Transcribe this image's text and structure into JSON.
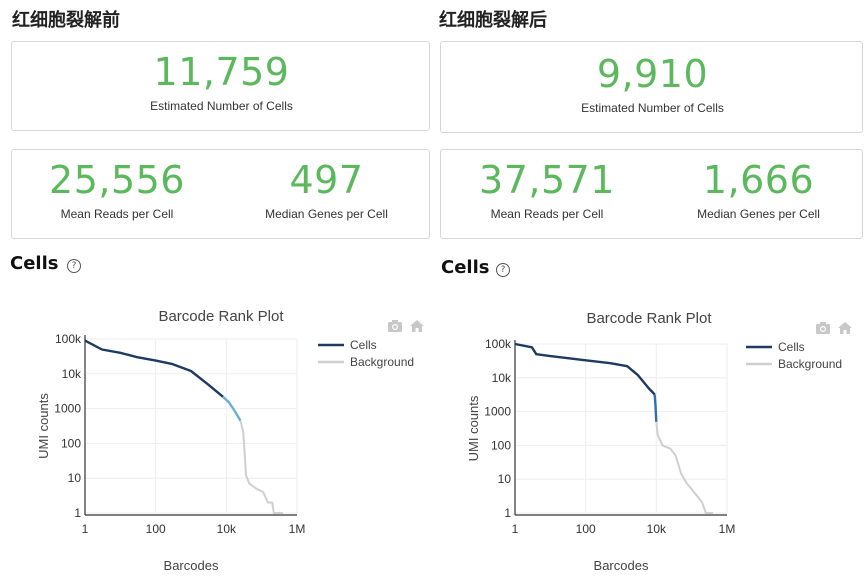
{
  "panels": [
    {
      "title": "红细胞裂解前",
      "estimated_cells": {
        "value": "11,759",
        "label": "Estimated Number of Cells"
      },
      "mean_reads": {
        "value": "25,556",
        "label": "Mean Reads per Cell"
      },
      "median_genes": {
        "value": "497",
        "label": "Median Genes per Cell"
      },
      "section_heading": "Cells",
      "help_glyph": "?",
      "toolbar": {
        "camera_icon": "camera-icon",
        "home_icon": "home-icon"
      }
    },
    {
      "title": "红细胞裂解后",
      "estimated_cells": {
        "value": "9,910",
        "label": "Estimated Number of Cells"
      },
      "mean_reads": {
        "value": "37,571",
        "label": "Mean Reads per Cell"
      },
      "median_genes": {
        "value": "1,666",
        "label": "Median Genes per Cell"
      },
      "section_heading": "Cells",
      "help_glyph": "?",
      "toolbar": {
        "camera_icon": "camera-icon",
        "home_icon": "home-icon"
      }
    }
  ],
  "colors": {
    "metric_green": "#5cb85c",
    "cells_line": "#1f3a60",
    "transition_line": "#6aaed6",
    "background_line": "#cfcfcf"
  },
  "chart_data": [
    {
      "type": "line",
      "title": "Barcode Rank Plot",
      "xlabel": "Barcodes",
      "ylabel": "UMI counts",
      "xscale": "log",
      "yscale": "log",
      "xlim": [
        1,
        1000000
      ],
      "ylim": [
        1,
        100000
      ],
      "xticks": [
        {
          "v": 1,
          "label": "1"
        },
        {
          "v": 100,
          "label": "100"
        },
        {
          "v": 10000,
          "label": "10k"
        },
        {
          "v": 1000000,
          "label": "1M"
        }
      ],
      "yticks": [
        {
          "v": 1,
          "label": "1"
        },
        {
          "v": 10,
          "label": "10"
        },
        {
          "v": 100,
          "label": "100"
        },
        {
          "v": 1000,
          "label": "1000"
        },
        {
          "v": 10000,
          "label": "10k"
        },
        {
          "v": 100000,
          "label": "100k"
        }
      ],
      "legend": [
        {
          "name": "Cells",
          "color": "#1f3a60"
        },
        {
          "name": "Background",
          "color": "#cfcfcf"
        }
      ],
      "series": [
        {
          "name": "Cells",
          "color": "#1f3a60",
          "points": [
            [
              1,
              90000
            ],
            [
              3,
              50000
            ],
            [
              10,
              40000
            ],
            [
              30,
              30000
            ],
            [
              100,
              24000
            ],
            [
              300,
              19000
            ],
            [
              1000,
              12000
            ],
            [
              3000,
              5000
            ],
            [
              8000,
              2200
            ]
          ]
        },
        {
          "name": "Transition",
          "color": "#6aaed6",
          "points": [
            [
              8000,
              2200
            ],
            [
              12000,
              1500
            ],
            [
              18000,
              800
            ],
            [
              25000,
              450
            ]
          ]
        },
        {
          "name": "Background",
          "color": "#cfcfcf",
          "points": [
            [
              25000,
              450
            ],
            [
              30000,
              220
            ],
            [
              33000,
              50
            ],
            [
              36000,
              12
            ],
            [
              45000,
              7
            ],
            [
              70000,
              5
            ],
            [
              110000,
              4
            ],
            [
              150000,
              2
            ],
            [
              200000,
              2
            ],
            [
              220000,
              1
            ],
            [
              300000,
              1
            ],
            [
              400000,
              1
            ]
          ]
        }
      ]
    },
    {
      "type": "line",
      "title": "Barcode Rank Plot",
      "xlabel": "Barcodes",
      "ylabel": "UMI counts",
      "xscale": "log",
      "yscale": "log",
      "xlim": [
        1,
        1000000
      ],
      "ylim": [
        1,
        100000
      ],
      "xticks": [
        {
          "v": 1,
          "label": "1"
        },
        {
          "v": 100,
          "label": "100"
        },
        {
          "v": 10000,
          "label": "10k"
        },
        {
          "v": 1000000,
          "label": "1M"
        }
      ],
      "yticks": [
        {
          "v": 1,
          "label": "1"
        },
        {
          "v": 10,
          "label": "10"
        },
        {
          "v": 100,
          "label": "100"
        },
        {
          "v": 1000,
          "label": "1000"
        },
        {
          "v": 10000,
          "label": "10k"
        },
        {
          "v": 100000,
          "label": "100k"
        }
      ],
      "legend": [
        {
          "name": "Cells",
          "color": "#1f3a60"
        },
        {
          "name": "Background",
          "color": "#cfcfcf"
        }
      ],
      "series": [
        {
          "name": "Cells",
          "color": "#1f3a60",
          "points": [
            [
              1,
              100000
            ],
            [
              3,
              80000
            ],
            [
              4,
              50000
            ],
            [
              10,
              44000
            ],
            [
              100,
              33000
            ],
            [
              500,
              27000
            ],
            [
              1500,
              22000
            ],
            [
              3000,
              12000
            ],
            [
              6000,
              5000
            ],
            [
              9000,
              3200
            ]
          ]
        },
        {
          "name": "Transition",
          "color": "#2f6fb0",
          "points": [
            [
              9000,
              3200
            ],
            [
              9500,
              1500
            ],
            [
              10000,
              500
            ]
          ]
        },
        {
          "name": "Background",
          "color": "#cfcfcf",
          "points": [
            [
              10000,
              500
            ],
            [
              11000,
              200
            ],
            [
              15000,
              100
            ],
            [
              25000,
              80
            ],
            [
              35000,
              50
            ],
            [
              50000,
              15
            ],
            [
              70000,
              8
            ],
            [
              100000,
              5
            ],
            [
              150000,
              3
            ],
            [
              200000,
              2
            ],
            [
              250000,
              1
            ],
            [
              400000,
              1
            ]
          ]
        }
      ]
    }
  ]
}
